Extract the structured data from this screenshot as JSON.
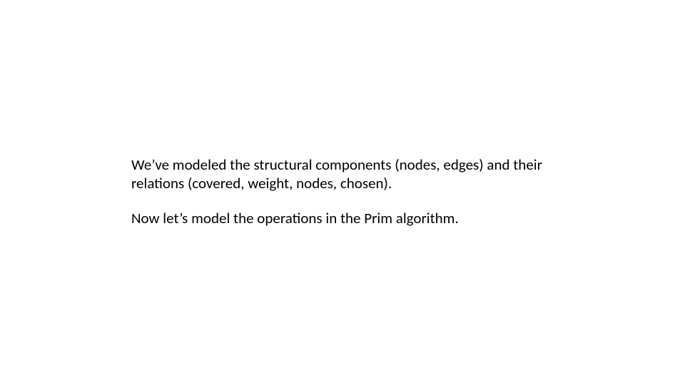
{
  "slide": {
    "background_color": "#ffffff",
    "text_color": "#000000",
    "font_family": "Calibri",
    "font_size_pt": 16,
    "paragraphs": [
      "We’ve modeled the structural components (nodes, edges) and their relations (covered, weight, nodes, chosen).",
      "Now let’s model the operations in the Prim algorithm."
    ]
  }
}
